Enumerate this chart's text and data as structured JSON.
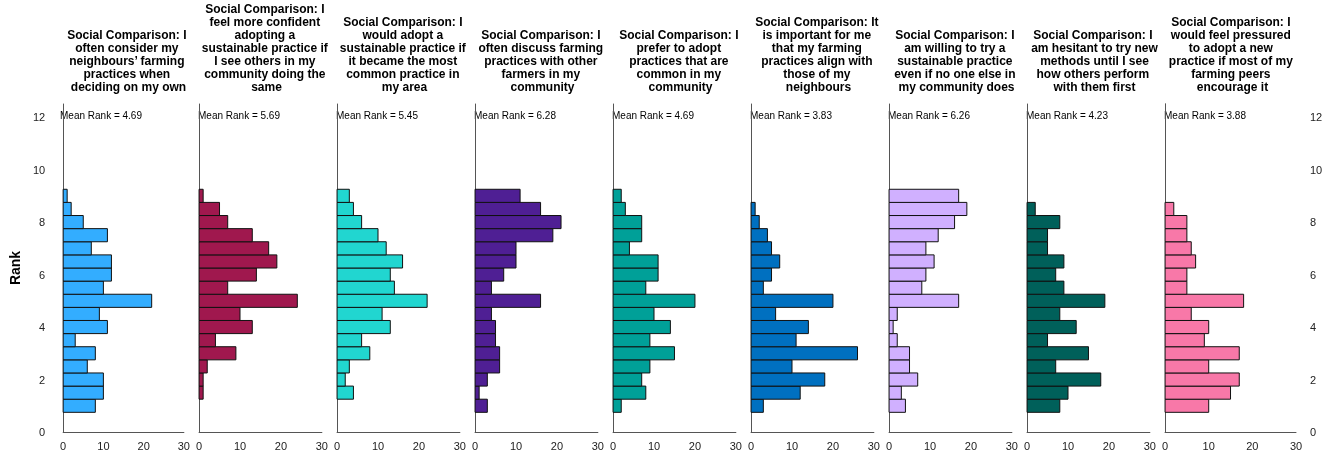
{
  "chart_data": [
    {
      "type": "histogram",
      "orientation": "horizontal",
      "title": "Social Comparison: I often consider my neighbours’ farming practices when deciding on my own",
      "ylabel": "Rank",
      "annotations": [
        "Mean Rank = 4.69"
      ],
      "color": "#33adff",
      "bins": [
        0.75,
        1.25,
        1.75,
        2.25,
        2.75,
        3.25,
        3.75,
        4.25,
        4.75,
        5.25,
        5.75,
        6.25,
        6.75,
        7.25,
        7.75,
        8.25,
        8.75,
        9.25
      ],
      "values": [
        8,
        10,
        10,
        6,
        8,
        3,
        11,
        9,
        22,
        10,
        12,
        12,
        7,
        11,
        5,
        2,
        1
      ],
      "xlim": [
        0,
        30
      ],
      "xticks": [
        0,
        10,
        20,
        30
      ],
      "ylim": [
        0,
        12.5
      ],
      "yticks": [
        0,
        2,
        4,
        6,
        8,
        10,
        12
      ]
    },
    {
      "type": "histogram",
      "orientation": "horizontal",
      "title": "Social Comparison: I feel more confident adopting a sustainable practice if I see others in my community doing the same",
      "annotations": [
        "Mean Rank = 5.69"
      ],
      "color": "#a0184e",
      "bins": [
        0.75,
        1.25,
        1.75,
        2.25,
        2.75,
        3.25,
        3.75,
        4.25,
        4.75,
        5.25,
        5.75,
        6.25,
        6.75,
        7.25,
        7.75,
        8.25,
        8.75,
        9.25
      ],
      "values": [
        0,
        1,
        1,
        2,
        9,
        4,
        13,
        10,
        24,
        7,
        14,
        19,
        17,
        13,
        7,
        5,
        1
      ],
      "xlim": [
        0,
        30
      ],
      "xticks": [
        0,
        10,
        20,
        30
      ],
      "ylim": [
        0,
        12.5
      ],
      "yticks": [
        0,
        2,
        4,
        6,
        8,
        10,
        12
      ],
      "tick_labels": "x"
    },
    {
      "type": "histogram",
      "orientation": "horizontal",
      "title": "Social Comparison: I would adopt a sustainable practice if it became the most common practice in my area",
      "annotations": [
        "Mean Rank = 5.45"
      ],
      "color": "#21d6d0",
      "bins": [
        0.75,
        1.25,
        1.75,
        2.25,
        2.75,
        3.25,
        3.75,
        4.25,
        4.75,
        5.25,
        5.75,
        6.25,
        6.75,
        7.25,
        7.75,
        8.25,
        8.75,
        9.25
      ],
      "values": [
        0,
        4,
        2,
        3,
        8,
        6,
        13,
        11,
        22,
        14,
        13,
        16,
        12,
        10,
        6,
        4,
        3
      ],
      "xlim": [
        0,
        30
      ],
      "xticks": [
        0,
        10,
        20,
        30
      ],
      "ylim": [
        0,
        12.5
      ],
      "yticks": [
        0,
        2,
        4,
        6,
        8,
        10,
        12
      ],
      "tick_labels": "x"
    },
    {
      "type": "histogram",
      "orientation": "horizontal",
      "title": "Social Comparison: I often discuss farming practices with other farmers in my community",
      "annotations": [
        "Mean Rank = 6.28"
      ],
      "color": "#4f1f94",
      "bins": [
        0.75,
        1.25,
        1.75,
        2.25,
        2.75,
        3.25,
        3.75,
        4.25,
        4.75,
        5.25,
        5.75,
        6.25,
        6.75,
        7.25,
        7.75,
        8.25,
        8.75,
        9.25
      ],
      "values": [
        3,
        1,
        3,
        6,
        6,
        5,
        5,
        4,
        16,
        4,
        7,
        10,
        10,
        19,
        21,
        16,
        11
      ],
      "xlim": [
        0,
        30
      ],
      "xticks": [
        0,
        10,
        20,
        30
      ],
      "ylim": [
        0,
        12.5
      ],
      "yticks": [
        0,
        2,
        4,
        6,
        8,
        10,
        12
      ],
      "tick_labels": "x"
    },
    {
      "type": "histogram",
      "orientation": "horizontal",
      "title": "Social Comparison: I prefer to adopt practices that are common in my community",
      "annotations": [
        "Mean Rank = 4.69"
      ],
      "color": "#00a098",
      "bins": [
        0.75,
        1.25,
        1.75,
        2.25,
        2.75,
        3.25,
        3.75,
        4.25,
        4.75,
        5.25,
        5.75,
        6.25,
        6.75,
        7.25,
        7.75,
        8.25,
        8.75,
        9.25
      ],
      "values": [
        2,
        8,
        7,
        9,
        15,
        9,
        14,
        10,
        20,
        8,
        11,
        11,
        4,
        7,
        7,
        3,
        2
      ],
      "xlim": [
        0,
        30
      ],
      "xticks": [
        0,
        10,
        20,
        30
      ],
      "ylim": [
        0,
        12.5
      ],
      "yticks": [
        0,
        2,
        4,
        6,
        8,
        10,
        12
      ],
      "tick_labels": "x"
    },
    {
      "type": "histogram",
      "orientation": "horizontal",
      "title": "Social Comparison: It is important for me that my farming practices align with those of my neighbours",
      "annotations": [
        "Mean Rank = 3.83"
      ],
      "color": "#0070c0",
      "bins": [
        0.75,
        1.25,
        1.75,
        2.25,
        2.75,
        3.25,
        3.75,
        4.25,
        4.75,
        5.25,
        5.75,
        6.25,
        6.75,
        7.25,
        7.75,
        8.25,
        8.75,
        9.25
      ],
      "values": [
        3,
        12,
        18,
        10,
        26,
        11,
        14,
        6,
        20,
        3,
        5,
        7,
        5,
        4,
        2,
        1,
        0
      ],
      "xlim": [
        0,
        30
      ],
      "xticks": [
        0,
        10,
        20,
        30
      ],
      "ylim": [
        0,
        12.5
      ],
      "yticks": [
        0,
        2,
        4,
        6,
        8,
        10,
        12
      ],
      "tick_labels": "x"
    },
    {
      "type": "histogram",
      "orientation": "horizontal",
      "title": "Social Comparison: I am willing to try a sustainable practice even if no one else in my community does",
      "annotations": [
        "Mean Rank = 6.26"
      ],
      "color": "#d0b0ff",
      "bins": [
        0.75,
        1.25,
        1.75,
        2.25,
        2.75,
        3.25,
        3.75,
        4.25,
        4.75,
        5.25,
        5.75,
        6.25,
        6.75,
        7.25,
        7.75,
        8.25,
        8.75,
        9.25
      ],
      "values": [
        4,
        3,
        7,
        5,
        5,
        2,
        1,
        2,
        17,
        8,
        9,
        11,
        9,
        12,
        16,
        19,
        17
      ],
      "xlim": [
        0,
        30
      ],
      "xticks": [
        0,
        10,
        20,
        30
      ],
      "ylim": [
        0,
        12.5
      ],
      "yticks": [
        0,
        2,
        4,
        6,
        8,
        10,
        12
      ],
      "tick_labels": "x"
    },
    {
      "type": "histogram",
      "orientation": "horizontal",
      "title": "Social Comparison: I am hesitant to try new methods until I see how others perform with them first",
      "annotations": [
        "Mean Rank = 4.23"
      ],
      "color": "#00605a",
      "bins": [
        0.75,
        1.25,
        1.75,
        2.25,
        2.75,
        3.25,
        3.75,
        4.25,
        4.75,
        5.25,
        5.75,
        6.25,
        6.75,
        7.25,
        7.75,
        8.25,
        8.75,
        9.25
      ],
      "values": [
        8,
        10,
        18,
        7,
        15,
        5,
        12,
        8,
        19,
        9,
        7,
        9,
        5,
        5,
        8,
        2,
        0
      ],
      "xlim": [
        0,
        30
      ],
      "xticks": [
        0,
        10,
        20,
        30
      ],
      "ylim": [
        0,
        12.5
      ],
      "yticks": [
        0,
        2,
        4,
        6,
        8,
        10,
        12
      ],
      "tick_labels": "x"
    },
    {
      "type": "histogram",
      "orientation": "horizontal",
      "title": "Social Comparison: I would feel pressured to adopt a new practice if most of my farming peers encourage it",
      "annotations": [
        "Mean Rank = 3.88"
      ],
      "color": "#f878a8",
      "bins": [
        0.75,
        1.25,
        1.75,
        2.25,
        2.75,
        3.25,
        3.75,
        4.25,
        4.75,
        5.25,
        5.75,
        6.25,
        6.75,
        7.25,
        7.75,
        8.25,
        8.75,
        9.25
      ],
      "values": [
        10,
        15,
        17,
        10,
        17,
        9,
        10,
        6,
        18,
        5,
        5,
        7,
        6,
        5,
        5,
        2,
        0
      ],
      "xlim": [
        0,
        30
      ],
      "xticks": [
        0,
        10,
        20,
        30
      ],
      "ylim": [
        0,
        12.5
      ],
      "yticks": [
        0,
        2,
        4,
        6,
        8,
        10,
        12
      ]
    }
  ]
}
